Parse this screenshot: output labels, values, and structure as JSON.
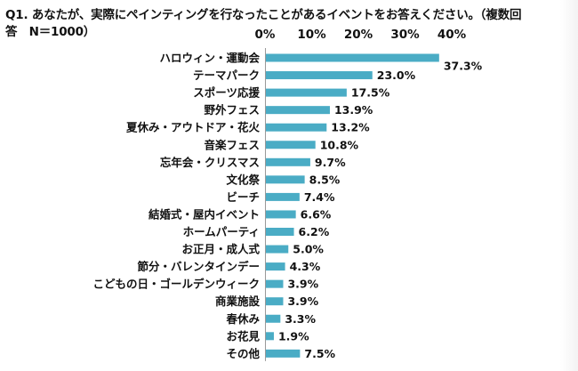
{
  "title": {
    "line1": "Q1. あなたが、実際にペインティングを行なったことがあるイベントをお答えください。（複数回",
    "line2": "答　N＝1000）"
  },
  "chart_data": {
    "type": "bar",
    "orientation": "horizontal",
    "title": "Q1. あなたが、実際にペインティングを行なったことがあるイベントをお答えください。（複数回答　N＝1000）",
    "categories": [
      "ハロウィン・運動会",
      "テーマパーク",
      "スポーツ応援",
      "野外フェス",
      "夏休み・アウトドア・花火",
      "音楽フェス",
      "忘年会・クリスマス",
      "文化祭",
      "ビーチ",
      "結婚式・屋内イベント",
      "ホームパーティ",
      "お正月・成人式",
      "節分・バレンタインデー",
      "こどもの日・ゴールデンウィーク",
      "商業施設",
      "春休み",
      "お花見",
      "その他"
    ],
    "values": [
      37.3,
      23.0,
      17.5,
      13.9,
      13.2,
      10.8,
      9.7,
      8.5,
      7.4,
      6.6,
      6.2,
      5.0,
      4.3,
      3.9,
      3.9,
      3.3,
      1.9,
      7.5
    ],
    "value_labels": [
      "37.3%",
      "23.0%",
      "17.5%",
      "13.9%",
      "13.2%",
      "10.8%",
      "9.7%",
      "8.5%",
      "7.4%",
      "6.6%",
      "6.2%",
      "5.0%",
      "4.3%",
      "3.9%",
      "3.9%",
      "3.3%",
      "1.9%",
      "7.5%"
    ],
    "x_ticks": [
      "0%",
      "10%",
      "20%",
      "30%",
      "40%"
    ],
    "xlim": [
      0,
      40
    ],
    "grid": false,
    "bar_color": "#4aacc5"
  }
}
